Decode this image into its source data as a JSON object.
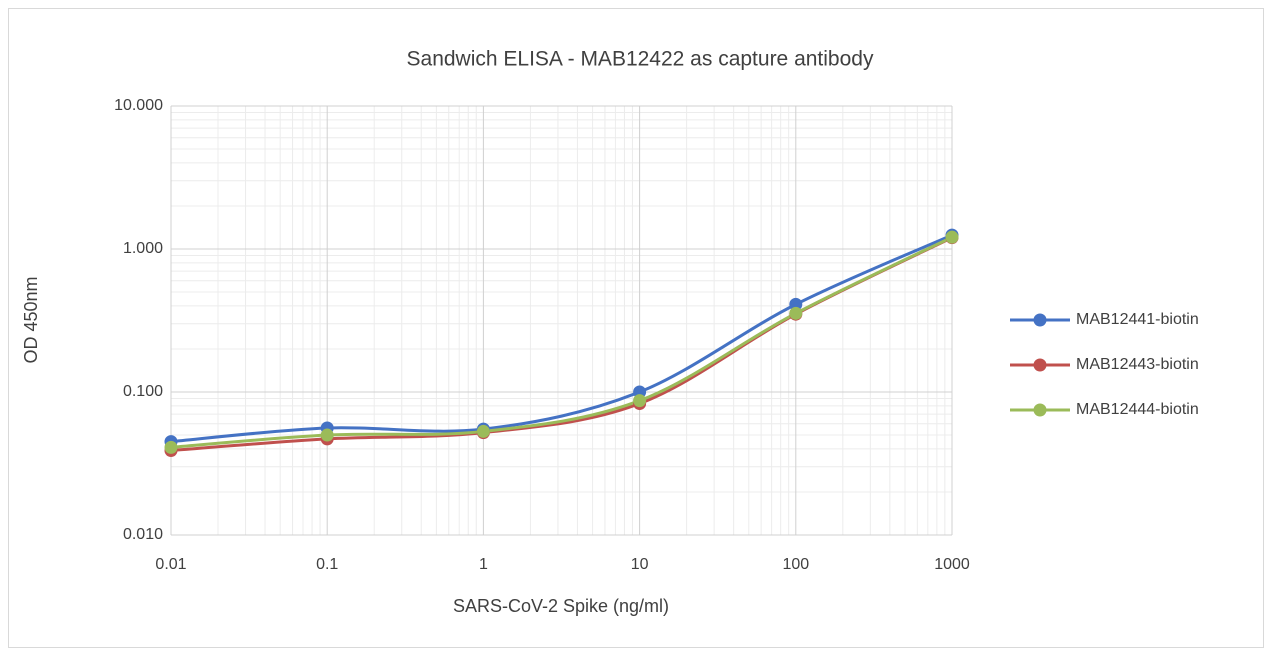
{
  "chart_data": {
    "type": "line",
    "title": "Sandwich ELISA - MAB12422 as capture antibody",
    "x_label": "SARS-CoV-2 Spike (ng/ml)",
    "y_label": "OD 450nm",
    "x": [
      0.01,
      0.1,
      1,
      10,
      100,
      1000
    ],
    "series": [
      {
        "name": "MAB12441-biotin",
        "color": "#4472c4",
        "values": [
          0.045,
          0.056,
          0.055,
          0.1,
          0.41,
          1.25
        ]
      },
      {
        "name": "MAB12443-biotin",
        "color": "#c0504d",
        "values": [
          0.039,
          0.047,
          0.052,
          0.083,
          0.35,
          1.2
        ]
      },
      {
        "name": "MAB12444-biotin",
        "color": "#9bbb59",
        "values": [
          0.041,
          0.05,
          0.053,
          0.087,
          0.355,
          1.21
        ]
      }
    ],
    "xlim": [
      0.01,
      1000
    ],
    "xticks": [
      0.01,
      0.1,
      1,
      10,
      100,
      1000
    ],
    "ylim": [
      0.01,
      10
    ],
    "yticks": [
      {
        "value": 0.01,
        "label": "0.010"
      },
      {
        "value": 0.1,
        "label": "0.100"
      },
      {
        "value": 1,
        "label": "1.000"
      },
      {
        "value": 10,
        "label": "10.000"
      }
    ],
    "x_log": true,
    "y_log": true,
    "grid": true,
    "minor_grid": true,
    "smooth": true,
    "legend": "right"
  }
}
